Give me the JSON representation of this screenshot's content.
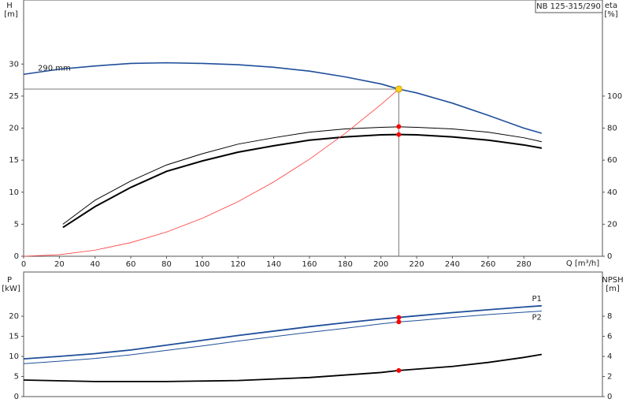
{
  "chart_data": [
    {
      "type": "line",
      "title": "NB 125-315/290",
      "x_label": "Q [m³/h]",
      "y_label": "H",
      "y_unit": "[m]",
      "y2_label": "eta",
      "y2_unit": "[%]",
      "xlim": [
        0,
        324
      ],
      "xticks": [
        0,
        20,
        40,
        60,
        80,
        100,
        120,
        140,
        160,
        180,
        200,
        220,
        240,
        260,
        280
      ],
      "ylim": [
        0,
        40
      ],
      "yticks": [
        0,
        5,
        10,
        15,
        20,
        25,
        30
      ],
      "y2lim": [
        0,
        160
      ],
      "y2ticks": [
        0,
        20,
        40,
        60,
        80,
        100
      ],
      "series": [
        {
          "name": "290 mm",
          "color": "#1f4e9a",
          "width": 1.6,
          "x": [
            0,
            20,
            40,
            60,
            80,
            100,
            120,
            140,
            160,
            180,
            200,
            210,
            220,
            240,
            260,
            280,
            290
          ],
          "values": [
            28.4,
            29.2,
            29.7,
            30.1,
            30.2,
            30.1,
            29.9,
            29.5,
            28.9,
            28.0,
            26.9,
            26.1,
            25.5,
            23.9,
            22.0,
            20.0,
            19.2
          ]
        },
        {
          "color": "#000000",
          "width": 1,
          "axis": "y2",
          "x": [
            22,
            40,
            60,
            80,
            100,
            120,
            140,
            160,
            180,
            200,
            210,
            220,
            240,
            260,
            280,
            290
          ],
          "values": [
            20,
            35,
            47,
            57,
            64,
            70,
            74,
            77.5,
            79.5,
            80.5,
            80.8,
            80.5,
            79.5,
            77.5,
            74,
            71.5
          ]
        },
        {
          "color": "#000000",
          "width": 2,
          "axis": "y2",
          "x": [
            22,
            40,
            60,
            80,
            100,
            120,
            140,
            160,
            180,
            200,
            210,
            220,
            240,
            260,
            280,
            290
          ],
          "values": [
            18,
            31,
            43,
            53,
            59.5,
            65,
            69,
            72.5,
            74.5,
            75.8,
            76,
            75.8,
            74.5,
            72.5,
            69.5,
            67.5
          ]
        },
        {
          "color": "#ff3b3b",
          "width": 0.8,
          "x": [
            0,
            20,
            40,
            60,
            80,
            100,
            120,
            140,
            160,
            180,
            200,
            210
          ],
          "values": [
            0,
            0.24,
            0.95,
            2.13,
            3.79,
            5.92,
            8.52,
            11.6,
            15.15,
            19.18,
            23.67,
            26.1
          ]
        }
      ],
      "points": [
        {
          "x": 210,
          "y": 26.1,
          "color": "#ffd21f",
          "guides": true
        },
        {
          "x": 210,
          "y": 81,
          "axis": "y2",
          "color": "#ff0000"
        },
        {
          "x": 210,
          "y": 76,
          "axis": "y2",
          "color": "#ff0000"
        }
      ]
    },
    {
      "type": "line",
      "y_label": "P",
      "y_unit": "[kW]",
      "y2_label": "NPSH",
      "y2_unit": "[m]",
      "xlim": [
        0,
        324
      ],
      "ylim": [
        0,
        31
      ],
      "yticks": [
        0,
        5,
        10,
        15,
        20
      ],
      "y2lim": [
        0,
        12.4
      ],
      "y2ticks": [
        0,
        2,
        4,
        6,
        8
      ],
      "series": [
        {
          "name": "P1",
          "color": "#1f4e9a",
          "width": 1.8,
          "x": [
            0,
            20,
            40,
            60,
            80,
            100,
            120,
            140,
            160,
            180,
            200,
            210,
            220,
            240,
            260,
            280,
            290
          ],
          "values": [
            9.4,
            10,
            10.7,
            11.6,
            12.8,
            14.0,
            15.2,
            16.3,
            17.4,
            18.4,
            19.3,
            19.7,
            20.1,
            20.9,
            21.6,
            22.3,
            22.6
          ]
        },
        {
          "name": "P2",
          "color": "#1f4e9a",
          "width": 1,
          "x": [
            0,
            20,
            40,
            60,
            80,
            100,
            120,
            140,
            160,
            180,
            200,
            210,
            220,
            240,
            260,
            280,
            290
          ],
          "values": [
            8.2,
            8.8,
            9.5,
            10.4,
            11.5,
            12.6,
            13.8,
            14.9,
            16.0,
            17.0,
            18.1,
            18.6,
            18.9,
            19.7,
            20.4,
            21.0,
            21.3
          ]
        },
        {
          "color": "#000000",
          "width": 1.8,
          "axis": "y2",
          "x": [
            0,
            40,
            80,
            120,
            160,
            200,
            210,
            240,
            260,
            280,
            290
          ],
          "values": [
            1.65,
            1.5,
            1.5,
            1.6,
            1.9,
            2.4,
            2.6,
            3.0,
            3.4,
            3.9,
            4.2
          ]
        }
      ],
      "points": [
        {
          "x": 210,
          "y": 19.7,
          "color": "#ff0000"
        },
        {
          "x": 210,
          "y": 18.6,
          "color": "#ff0000"
        },
        {
          "x": 210,
          "y": 2.6,
          "axis": "y2",
          "color": "#ff0000"
        }
      ]
    }
  ]
}
